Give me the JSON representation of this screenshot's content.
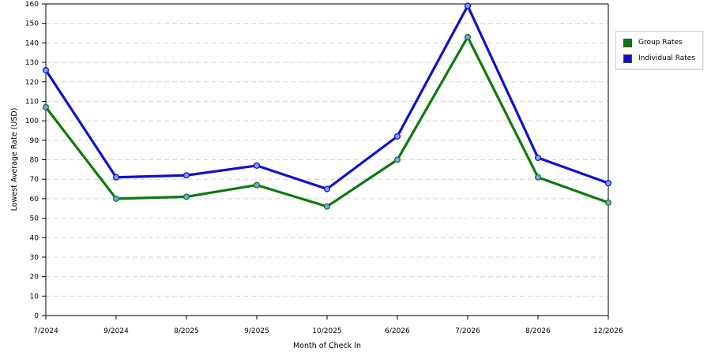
{
  "chart_data": {
    "type": "line",
    "title": "",
    "xlabel": "Month of Check In",
    "ylabel": "Lowest Average Rate (USD)",
    "categories": [
      "7/2024",
      "9/2024",
      "8/2025",
      "9/2025",
      "10/2025",
      "6/2026",
      "7/2026",
      "8/2026",
      "12/2026"
    ],
    "ylim": [
      0,
      160
    ],
    "yticks": [
      0,
      10,
      20,
      30,
      40,
      50,
      60,
      70,
      80,
      90,
      100,
      110,
      120,
      130,
      140,
      150,
      160
    ],
    "grid": true,
    "legend_position": "right",
    "series": [
      {
        "name": "Group Rates",
        "color": "#0e7a0e",
        "values": [
          107,
          60,
          61,
          67,
          56,
          80,
          143,
          71,
          58
        ]
      },
      {
        "name": "Individual Rates",
        "color": "#1010cc",
        "values": [
          126,
          71,
          72,
          77,
          65,
          92,
          159,
          81,
          68
        ]
      }
    ]
  }
}
